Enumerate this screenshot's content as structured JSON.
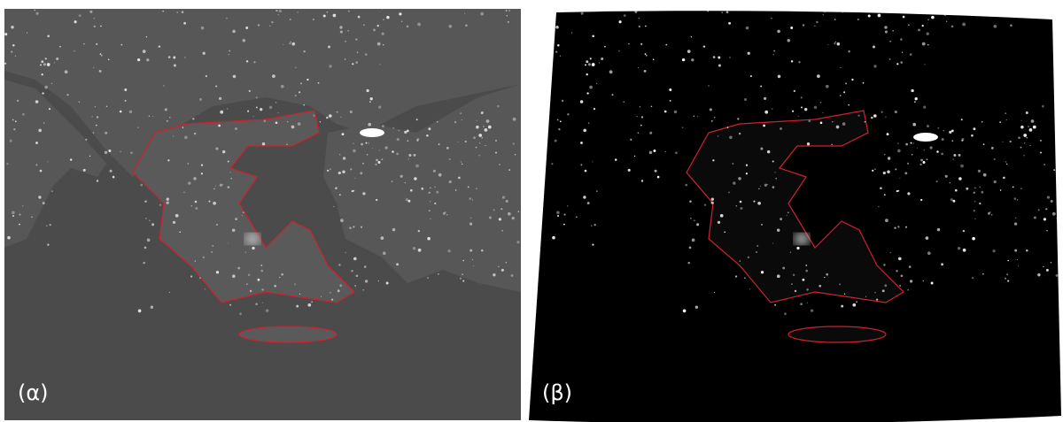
{
  "panels": [
    {
      "label": "(α)"
    },
    {
      "label": "(β)"
    }
  ]
}
